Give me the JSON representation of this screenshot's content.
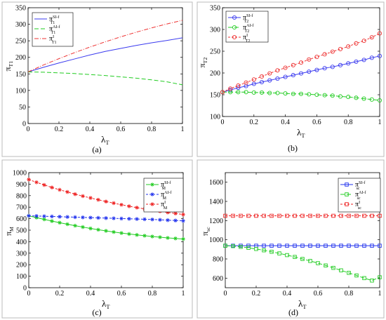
{
  "chart_data": [
    {
      "id": "a",
      "panel_label": "(a)",
      "type": "line",
      "xlabel": "λ",
      "xlabel_sub": "T",
      "ylabel": "π",
      "ylabel_sub": "T1",
      "xlim": [
        0,
        1
      ],
      "ylim": [
        0,
        350
      ],
      "xticks": [
        0,
        0.2,
        0.4,
        0.6,
        0.8,
        1
      ],
      "xtick_labels": [
        "0",
        "0.2",
        "0.4",
        "0.6",
        "0.8",
        "1"
      ],
      "yticks": [
        0,
        50,
        100,
        150,
        200,
        250,
        300,
        350
      ],
      "ytick_labels": [
        "0",
        "50",
        "100",
        "150",
        "200",
        "250",
        "300",
        "350"
      ],
      "legend_position": "top-left",
      "series": [
        {
          "label_sym": "π",
          "label_sub": "T1",
          "label_sup": "SI-f",
          "color": "#3b3bef",
          "dash": "",
          "marker": "none",
          "x": [
            0,
            0.1,
            0.2,
            0.3,
            0.4,
            0.5,
            0.6,
            0.7,
            0.8,
            0.9,
            1
          ],
          "y": [
            156,
            170,
            183,
            195,
            207,
            218,
            227,
            236,
            244,
            251,
            259
          ]
        },
        {
          "label_sym": "π",
          "label_sub": "T1",
          "label_sup": "AI-f",
          "color": "#22cc22",
          "dash": "6,3",
          "marker": "none",
          "x": [
            0,
            0.1,
            0.2,
            0.3,
            0.4,
            0.5,
            0.6,
            0.7,
            0.8,
            0.9,
            1
          ],
          "y": [
            156,
            155,
            153,
            151,
            148,
            145,
            141,
            137,
            132,
            126,
            117
          ]
        },
        {
          "label_sym": "π",
          "label_sub": "T1",
          "label_sup": "I",
          "color": "#ee3333",
          "dash": "6,2,1,2",
          "marker": "none",
          "x": [
            0,
            0.1,
            0.2,
            0.3,
            0.4,
            0.5,
            0.6,
            0.7,
            0.8,
            0.9,
            1
          ],
          "y": [
            156,
            177,
            196,
            214,
            231,
            247,
            262,
            276,
            289,
            301,
            312
          ]
        }
      ]
    },
    {
      "id": "b",
      "panel_label": "(b)",
      "type": "line",
      "xlabel": "λ",
      "xlabel_sub": "T",
      "ylabel": "π",
      "ylabel_sub": "T2",
      "xlim": [
        0,
        1
      ],
      "ylim": [
        100,
        350
      ],
      "xticks": [
        0,
        0.2,
        0.4,
        0.6,
        0.8,
        1
      ],
      "xtick_labels": [
        "0",
        "0.2",
        "0.4",
        "0.6",
        "0.8",
        "1"
      ],
      "yticks": [
        100,
        150,
        200,
        250,
        300,
        350
      ],
      "ytick_labels": [
        "100",
        "150",
        "200",
        "250",
        "300",
        "350"
      ],
      "legend_position": "top-left",
      "series": [
        {
          "label_sym": "π",
          "label_sub": "T2",
          "label_sup": "SI-f",
          "color": "#3b3bef",
          "dash": "",
          "marker": "circle",
          "x": [
            0,
            0.05,
            0.1,
            0.15,
            0.2,
            0.25,
            0.3,
            0.35,
            0.4,
            0.45,
            0.5,
            0.55,
            0.6,
            0.65,
            0.7,
            0.75,
            0.8,
            0.85,
            0.9,
            0.95,
            1
          ],
          "y": [
            156,
            161,
            166,
            170,
            175,
            179,
            183,
            187,
            191,
            195,
            199,
            203,
            207,
            211,
            214,
            218,
            222,
            226,
            230,
            235,
            239
          ]
        },
        {
          "label_sym": "π",
          "label_sub": "T2",
          "label_sup": "AI-f",
          "color": "#22cc22",
          "dash": "6,3",
          "marker": "circle",
          "x": [
            0,
            0.05,
            0.1,
            0.15,
            0.2,
            0.25,
            0.3,
            0.35,
            0.4,
            0.45,
            0.5,
            0.55,
            0.6,
            0.65,
            0.7,
            0.75,
            0.8,
            0.85,
            0.9,
            0.95,
            1
          ],
          "y": [
            156,
            156,
            156,
            156,
            155,
            155,
            154,
            154,
            153,
            152,
            152,
            151,
            150,
            149,
            148,
            146,
            145,
            143,
            141,
            139,
            137
          ]
        },
        {
          "label_sym": "π",
          "label_sub": "T2",
          "label_sup": "I",
          "color": "#ee3333",
          "dash": "3,2",
          "marker": "circle",
          "x": [
            0,
            0.05,
            0.1,
            0.15,
            0.2,
            0.25,
            0.3,
            0.35,
            0.4,
            0.45,
            0.5,
            0.55,
            0.6,
            0.65,
            0.7,
            0.75,
            0.8,
            0.85,
            0.9,
            0.95,
            1
          ],
          "y": [
            156,
            164,
            171,
            178,
            185,
            192,
            199,
            206,
            212,
            218,
            224,
            231,
            237,
            243,
            249,
            255,
            261,
            268,
            274,
            282,
            291
          ]
        }
      ]
    },
    {
      "id": "c",
      "panel_label": "(c)",
      "type": "line",
      "xlabel": "λ",
      "xlabel_sub": "T",
      "ylabel": "π",
      "ylabel_sub": "M",
      "xlim": [
        0,
        1
      ],
      "ylim": [
        0,
        1000
      ],
      "xticks": [
        0,
        0.2,
        0.4,
        0.6,
        0.8,
        1
      ],
      "xtick_labels": [
        "0",
        "0.2",
        "0.4",
        "0.6",
        "0.8",
        "1"
      ],
      "yticks": [
        0,
        100,
        200,
        300,
        400,
        500,
        600,
        700,
        800,
        900,
        1000
      ],
      "ytick_labels": [
        "0",
        "100",
        "200",
        "300",
        "400",
        "500",
        "600",
        "700",
        "800",
        "900",
        "1000"
      ],
      "legend_position": "top-right",
      "series": [
        {
          "label_sym": "π",
          "label_sub": "M",
          "label_sup": "SI-f",
          "color": "#22cc22",
          "dash": "",
          "marker": "star",
          "x": [
            0,
            0.05,
            0.1,
            0.15,
            0.2,
            0.25,
            0.3,
            0.35,
            0.4,
            0.45,
            0.5,
            0.55,
            0.6,
            0.65,
            0.7,
            0.75,
            0.8,
            0.85,
            0.9,
            0.95,
            1
          ],
          "y": [
            625,
            609,
            594,
            579,
            565,
            552,
            539,
            527,
            515,
            504,
            494,
            484,
            475,
            467,
            459,
            452,
            445,
            439,
            433,
            428,
            423
          ]
        },
        {
          "label_sym": "π",
          "label_sub": "M",
          "label_sup": "AI-f",
          "color": "#2233ee",
          "dash": "3,2",
          "marker": "star",
          "x": [
            0,
            0.05,
            0.1,
            0.15,
            0.2,
            0.25,
            0.3,
            0.35,
            0.4,
            0.45,
            0.5,
            0.55,
            0.6,
            0.65,
            0.7,
            0.75,
            0.8,
            0.85,
            0.9,
            0.95,
            1
          ],
          "y": [
            625,
            623,
            621,
            619,
            617,
            615,
            613,
            611,
            609,
            607,
            605,
            603,
            601,
            599,
            597,
            595,
            593,
            590,
            587,
            584,
            581
          ]
        },
        {
          "label_sym": "π",
          "label_sub": "M",
          "label_sup": "I",
          "color": "#ee2222",
          "dash": "3,2",
          "marker": "star",
          "x": [
            0,
            0.05,
            0.1,
            0.15,
            0.2,
            0.25,
            0.3,
            0.35,
            0.4,
            0.45,
            0.5,
            0.55,
            0.6,
            0.65,
            0.7,
            0.75,
            0.8,
            0.85,
            0.9,
            0.95,
            1
          ],
          "y": [
            940,
            916,
            893,
            871,
            851,
            832,
            813,
            796,
            780,
            764,
            749,
            735,
            721,
            708,
            696,
            685,
            674,
            664,
            654,
            645,
            636
          ]
        }
      ]
    },
    {
      "id": "d",
      "panel_label": "(d)",
      "type": "line",
      "xlabel": "λ",
      "xlabel_sub": "T",
      "ylabel": "π",
      "ylabel_sub": "sc",
      "xlim": [
        0,
        1
      ],
      "ylim": [
        500,
        1700
      ],
      "xticks": [
        0,
        0.2,
        0.4,
        0.6,
        0.8,
        1
      ],
      "xtick_labels": [
        "0",
        "0.2",
        "0.4",
        "0.6",
        "0.8",
        "1"
      ],
      "yticks": [
        600,
        800,
        1000,
        1200,
        1400,
        1600
      ],
      "ytick_labels": [
        "600",
        "800",
        "1000",
        "1200",
        "1400",
        "1600"
      ],
      "legend_position": "top-right",
      "series": [
        {
          "label_sym": "π",
          "label_sub": "sc",
          "label_sup": "SI-f",
          "color": "#2233ee",
          "dash": "",
          "marker": "square",
          "x": [
            0,
            0.05,
            0.1,
            0.15,
            0.2,
            0.25,
            0.3,
            0.35,
            0.4,
            0.45,
            0.5,
            0.55,
            0.6,
            0.65,
            0.7,
            0.75,
            0.8,
            0.85,
            0.9,
            0.95,
            1
          ],
          "y": [
            938,
            938,
            938,
            938,
            938,
            938,
            938,
            938,
            938,
            938,
            938,
            938,
            938,
            938,
            938,
            938,
            938,
            938,
            938,
            938,
            938
          ]
        },
        {
          "label_sym": "π",
          "label_sub": "sc",
          "label_sup": "AI-f",
          "color": "#22cc22",
          "dash": "6,3",
          "marker": "square",
          "x": [
            0,
            0.05,
            0.1,
            0.15,
            0.2,
            0.25,
            0.3,
            0.35,
            0.4,
            0.45,
            0.5,
            0.55,
            0.6,
            0.65,
            0.7,
            0.75,
            0.8,
            0.85,
            0.9,
            0.95,
            1
          ],
          "y": [
            938,
            934,
            926,
            916,
            904,
            890,
            875,
            858,
            840,
            821,
            800,
            779,
            756,
            732,
            707,
            681,
            655,
            628,
            600,
            575,
            609
          ]
        },
        {
          "label_sym": "π",
          "label_sub": "sc",
          "label_sup": "I",
          "color": "#ee2222",
          "dash": "3,2",
          "marker": "square",
          "x": [
            0,
            0.05,
            0.1,
            0.15,
            0.2,
            0.25,
            0.3,
            0.35,
            0.4,
            0.45,
            0.5,
            0.55,
            0.6,
            0.65,
            0.7,
            0.75,
            0.8,
            0.85,
            0.9,
            0.95,
            1
          ],
          "y": [
            1250,
            1250,
            1250,
            1250,
            1250,
            1250,
            1250,
            1250,
            1250,
            1250,
            1250,
            1250,
            1250,
            1250,
            1250,
            1250,
            1250,
            1250,
            1250,
            1250,
            1250
          ]
        }
      ]
    }
  ]
}
